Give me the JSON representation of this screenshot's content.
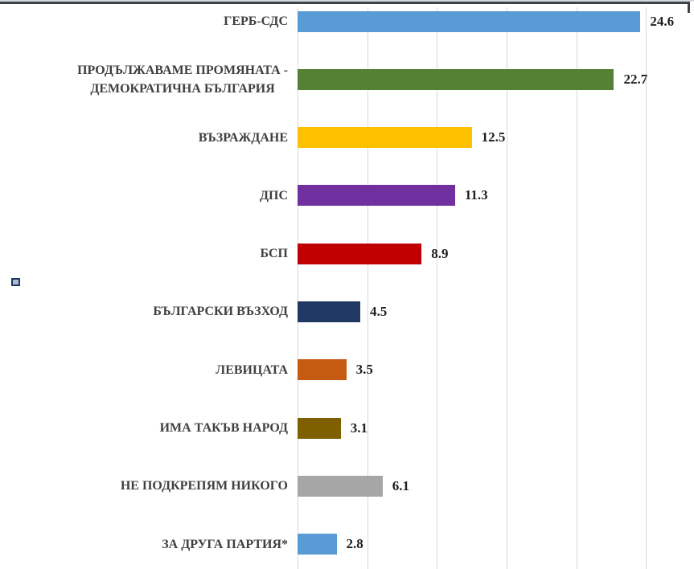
{
  "chart_data": {
    "type": "bar",
    "orientation": "horizontal",
    "title": "",
    "xlabel": "",
    "ylabel": "",
    "categories": [
      "ГЕРБ-СДС",
      "ПРОДЪЛЖАВАМЕ ПРОМЯНАТА -\nДЕМОКРАТИЧНА БЪЛГАРИЯ",
      "ВЪЗРАЖДАНЕ",
      "ДПС",
      "БСП",
      "БЪЛГАРСКИ ВЪЗХОД",
      "ЛЕВИЦАТА",
      "ИМА ТАКЪВ НАРОД",
      "НЕ ПОДКРЕПЯМ НИКОГО",
      "ЗА ДРУГА ПАРТИЯ*"
    ],
    "values": [
      24.6,
      22.7,
      12.5,
      11.3,
      8.9,
      4.5,
      3.5,
      3.1,
      6.1,
      2.8
    ],
    "data_labels": [
      "24.6",
      "22.7",
      "12.5",
      "11.3",
      "8.9",
      "4.5",
      "3.5",
      "3.1",
      "6.1",
      "2.8"
    ],
    "bar_colors": [
      "#5B9BD5",
      "#548235",
      "#FFC000",
      "#7030A0",
      "#C00000",
      "#1F3864",
      "#C55A11",
      "#7F6000",
      "#A6A6A6",
      "#5B9BD5"
    ],
    "xlim": [
      0,
      28.4
    ],
    "gridline_values": [
      0,
      5,
      10,
      15,
      20,
      25
    ],
    "grid": true,
    "tick_labels_visible": false,
    "legend_position": "left"
  },
  "style_colors": {
    "gridline": "#D9D9D9",
    "category_label": "#404040",
    "value_label": "#1f1f1f",
    "top_strip": "#D6D8DC",
    "top_border": "#3C434B",
    "legend_key_fill": "#A9BAD1",
    "legend_key_border": "#1F3864",
    "background": "#FFFFFF"
  }
}
